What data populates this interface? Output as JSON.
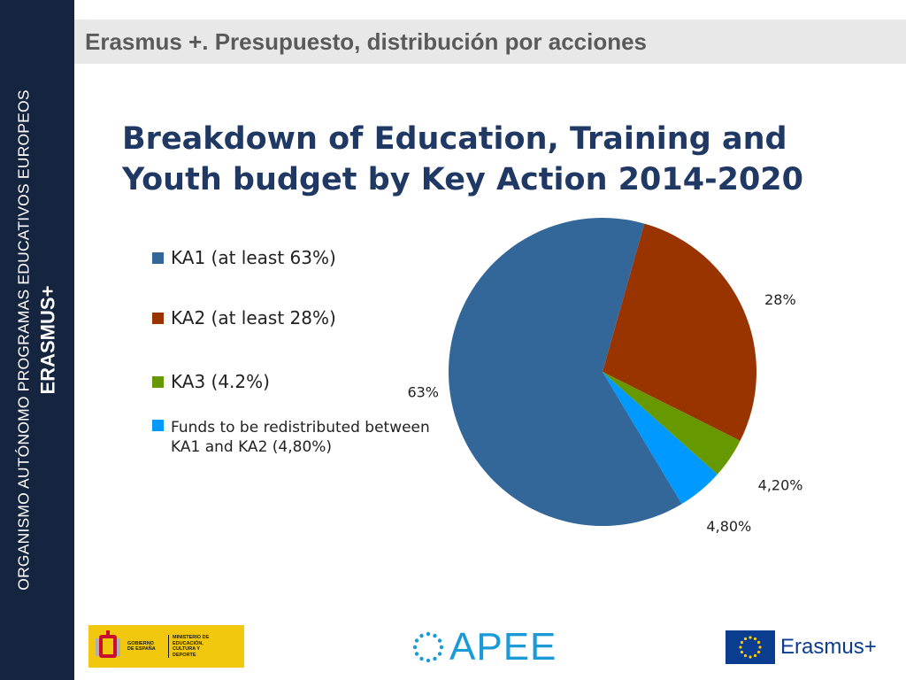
{
  "sidebar": {
    "line1": "ORGANISMO AUTÓNOMO PROGRAMAS EDUCATIVOS EUROPEOS",
    "line2": "ERASMUS+"
  },
  "header": {
    "title": "Erasmus +. Presupuesto, distribución por acciones"
  },
  "footer": {
    "spain_logo_text": "GOBIERNO DE ESPAÑA",
    "ministry_text": "MINISTERIO DE EDUCACIÓN, CULTURA Y DEPORTE",
    "apee_logo": "APEE",
    "erasmus_logo": "Erasmus+"
  },
  "colors": {
    "ka1": "#336699",
    "ka2": "#993300",
    "ka3": "#669900",
    "funds": "#0099ff",
    "sidebar": "#15243f",
    "title": "#1f3864"
  },
  "chart_data": {
    "type": "pie",
    "title_line1": "Breakdown of Education, Training and",
    "title_line2": "Youth budget by Key Action 2014-2020",
    "legend_position": "left",
    "slices": [
      {
        "key": "ka1",
        "legend": "KA1 (at least 63%)",
        "value": 63,
        "label": "63%"
      },
      {
        "key": "ka2",
        "legend": "KA2 (at least 28%)",
        "value": 28,
        "label": "28%"
      },
      {
        "key": "ka3",
        "legend": "KA3 (4.2%)",
        "value": 4.2,
        "label": "4,20%"
      },
      {
        "key": "funds",
        "legend": "Funds to be redistributed between KA1 and KA2 (4,80%)",
        "value": 4.8,
        "label": "4,80%"
      }
    ]
  }
}
